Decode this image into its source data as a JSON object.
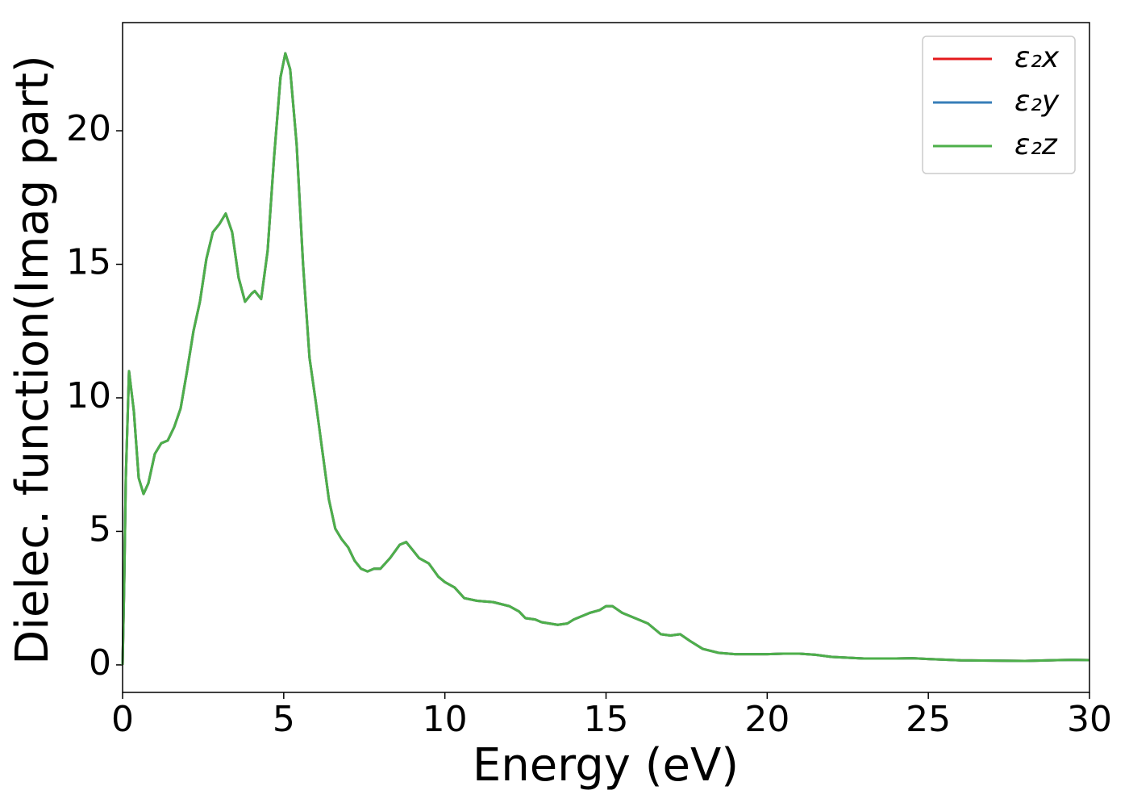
{
  "chart_data": {
    "type": "line",
    "xlabel": "Energy (eV)",
    "ylabel": "Dielec. function(Imag part)",
    "x": [
      0,
      0.05,
      0.1,
      0.2,
      0.35,
      0.5,
      0.65,
      0.8,
      1.0,
      1.2,
      1.4,
      1.6,
      1.8,
      2.0,
      2.2,
      2.4,
      2.6,
      2.8,
      3.0,
      3.2,
      3.4,
      3.6,
      3.8,
      4.0,
      4.1,
      4.3,
      4.5,
      4.7,
      4.9,
      5.05,
      5.2,
      5.4,
      5.6,
      5.8,
      6.0,
      6.2,
      6.4,
      6.6,
      6.8,
      7.0,
      7.2,
      7.4,
      7.6,
      7.8,
      8.0,
      8.3,
      8.6,
      8.8,
      9.0,
      9.2,
      9.5,
      9.8,
      10.0,
      10.3,
      10.6,
      11.0,
      11.5,
      12.0,
      12.3,
      12.5,
      12.8,
      13.0,
      13.5,
      13.8,
      14.0,
      14.5,
      14.8,
      15.0,
      15.2,
      15.5,
      16.0,
      16.3,
      16.7,
      17.0,
      17.3,
      17.6,
      18.0,
      18.5,
      19.0,
      20.0,
      20.5,
      21.0,
      21.5,
      22.0,
      23.0,
      24.0,
      24.5,
      25.0,
      26.0,
      27.0,
      28.0,
      29.0,
      29.5,
      30.0
    ],
    "series": [
      {
        "name": "ε₂x",
        "color": "#e41a1c",
        "values": [
          0,
          3,
          7,
          11.0,
          9.5,
          7,
          6.4,
          6.8,
          7.9,
          8.3,
          8.4,
          8.9,
          9.6,
          11.0,
          12.5,
          13.6,
          15.2,
          16.2,
          16.5,
          16.9,
          16.2,
          14.5,
          13.6,
          13.9,
          14.0,
          13.7,
          15.5,
          19.0,
          22.0,
          22.9,
          22.3,
          19.5,
          15.0,
          11.5,
          9.8,
          8.0,
          6.2,
          5.1,
          4.7,
          4.4,
          3.9,
          3.6,
          3.5,
          3.6,
          3.6,
          4.0,
          4.5,
          4.6,
          4.3,
          4.0,
          3.8,
          3.3,
          3.1,
          2.9,
          2.5,
          2.4,
          2.35,
          2.2,
          2.0,
          1.75,
          1.7,
          1.6,
          1.5,
          1.55,
          1.7,
          1.95,
          2.05,
          2.2,
          2.2,
          1.95,
          1.7,
          1.55,
          1.15,
          1.1,
          1.15,
          0.9,
          0.6,
          0.45,
          0.4,
          0.4,
          0.42,
          0.42,
          0.38,
          0.3,
          0.24,
          0.24,
          0.25,
          0.22,
          0.17,
          0.16,
          0.15,
          0.18,
          0.19,
          0.18
        ]
      },
      {
        "name": "ε₂y",
        "color": "#377eb8",
        "values": [
          0,
          3,
          7,
          11.0,
          9.5,
          7,
          6.4,
          6.8,
          7.9,
          8.3,
          8.4,
          8.9,
          9.6,
          11.0,
          12.5,
          13.6,
          15.2,
          16.2,
          16.5,
          16.9,
          16.2,
          14.5,
          13.6,
          13.9,
          14.0,
          13.7,
          15.5,
          19.0,
          22.0,
          22.9,
          22.3,
          19.5,
          15.0,
          11.5,
          9.8,
          8.0,
          6.2,
          5.1,
          4.7,
          4.4,
          3.9,
          3.6,
          3.5,
          3.6,
          3.6,
          4.0,
          4.5,
          4.6,
          4.3,
          4.0,
          3.8,
          3.3,
          3.1,
          2.9,
          2.5,
          2.4,
          2.35,
          2.2,
          2.0,
          1.75,
          1.7,
          1.6,
          1.5,
          1.55,
          1.7,
          1.95,
          2.05,
          2.2,
          2.2,
          1.95,
          1.7,
          1.55,
          1.15,
          1.1,
          1.15,
          0.9,
          0.6,
          0.45,
          0.4,
          0.4,
          0.42,
          0.42,
          0.38,
          0.3,
          0.24,
          0.24,
          0.25,
          0.22,
          0.17,
          0.16,
          0.15,
          0.18,
          0.19,
          0.18
        ]
      },
      {
        "name": "ε₂z",
        "color": "#4daf4a",
        "values": [
          0,
          3,
          7,
          11.0,
          9.5,
          7,
          6.4,
          6.8,
          7.9,
          8.3,
          8.4,
          8.9,
          9.6,
          11.0,
          12.5,
          13.6,
          15.2,
          16.2,
          16.5,
          16.9,
          16.2,
          14.5,
          13.6,
          13.9,
          14.0,
          13.7,
          15.5,
          19.0,
          22.0,
          22.9,
          22.3,
          19.5,
          15.0,
          11.5,
          9.8,
          8.0,
          6.2,
          5.1,
          4.7,
          4.4,
          3.9,
          3.6,
          3.5,
          3.6,
          3.6,
          4.0,
          4.5,
          4.6,
          4.3,
          4.0,
          3.8,
          3.3,
          3.1,
          2.9,
          2.5,
          2.4,
          2.35,
          2.2,
          2.0,
          1.75,
          1.7,
          1.6,
          1.5,
          1.55,
          1.7,
          1.95,
          2.05,
          2.2,
          2.2,
          1.95,
          1.7,
          1.55,
          1.15,
          1.1,
          1.15,
          0.9,
          0.6,
          0.45,
          0.4,
          0.4,
          0.42,
          0.42,
          0.38,
          0.3,
          0.24,
          0.24,
          0.25,
          0.22,
          0.17,
          0.16,
          0.15,
          0.18,
          0.19,
          0.18
        ]
      }
    ],
    "xlim": [
      0,
      30
    ],
    "xticks": [
      0,
      5,
      10,
      15,
      20,
      25,
      30
    ],
    "ylim": [
      -1.03,
      24.05
    ],
    "yticks": [
      0,
      5,
      10,
      15,
      20
    ],
    "grid": false,
    "legend": "upper right"
  }
}
